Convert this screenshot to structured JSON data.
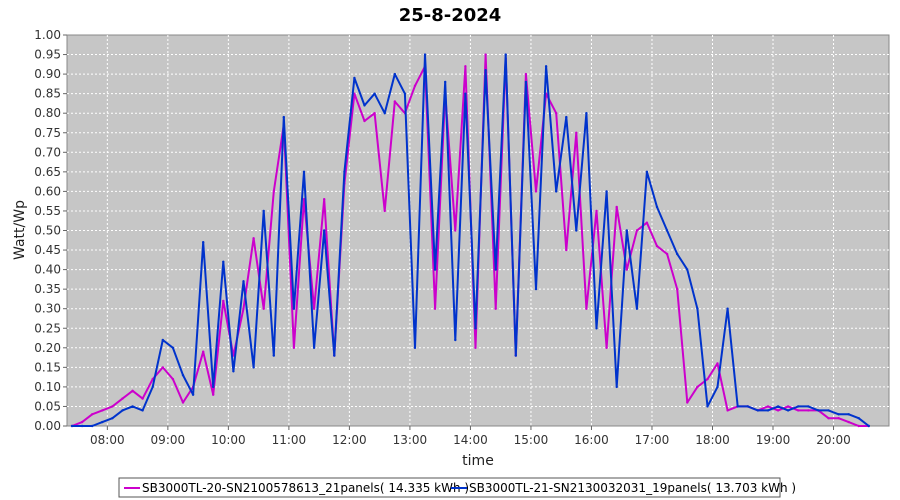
{
  "chart_data": {
    "type": "line",
    "title": "25-8-2024",
    "xlabel": "time",
    "ylabel": "Watt/Wp",
    "ylim": [
      0,
      1.0
    ],
    "xlim": [
      "07:20",
      "20:55"
    ],
    "y_ticks": [
      "0.00",
      "0.05",
      "0.10",
      "0.15",
      "0.20",
      "0.25",
      "0.30",
      "0.35",
      "0.40",
      "0.45",
      "0.50",
      "0.55",
      "0.60",
      "0.65",
      "0.70",
      "0.75",
      "0.80",
      "0.85",
      "0.90",
      "0.95",
      "1.00"
    ],
    "x_ticks": [
      "08:00",
      "09:00",
      "10:00",
      "11:00",
      "12:00",
      "13:00",
      "14:00",
      "15:00",
      "16:00",
      "17:00",
      "18:00",
      "19:00",
      "20:00"
    ],
    "grid": true,
    "legend_position": "bottom",
    "series": [
      {
        "name": "SB3000TL-20-SN2100578613_21panels( 14.335 kWh )",
        "color": "#cc00cc",
        "x": [
          "07:25",
          "07:35",
          "07:45",
          "07:55",
          "08:05",
          "08:15",
          "08:25",
          "08:35",
          "08:45",
          "08:55",
          "09:05",
          "09:15",
          "09:25",
          "09:35",
          "09:45",
          "09:55",
          "10:05",
          "10:15",
          "10:25",
          "10:35",
          "10:45",
          "10:55",
          "11:05",
          "11:15",
          "11:25",
          "11:35",
          "11:45",
          "11:55",
          "12:05",
          "12:15",
          "12:25",
          "12:35",
          "12:45",
          "12:55",
          "13:05",
          "13:15",
          "13:25",
          "13:35",
          "13:45",
          "13:55",
          "14:05",
          "14:15",
          "14:25",
          "14:35",
          "14:45",
          "14:55",
          "15:05",
          "15:15",
          "15:25",
          "15:35",
          "15:45",
          "15:55",
          "16:05",
          "16:15",
          "16:25",
          "16:35",
          "16:45",
          "16:55",
          "17:05",
          "17:15",
          "17:25",
          "17:35",
          "17:45",
          "17:55",
          "18:05",
          "18:15",
          "18:25",
          "18:35",
          "18:45",
          "18:55",
          "19:05",
          "19:15",
          "19:25",
          "19:35",
          "19:45",
          "19:55",
          "20:05",
          "20:15",
          "20:25",
          "20:35"
        ],
        "y": [
          0.0,
          0.01,
          0.03,
          0.04,
          0.05,
          0.07,
          0.09,
          0.07,
          0.12,
          0.15,
          0.12,
          0.06,
          0.1,
          0.19,
          0.08,
          0.32,
          0.18,
          0.3,
          0.48,
          0.3,
          0.6,
          0.77,
          0.2,
          0.58,
          0.3,
          0.58,
          0.18,
          0.62,
          0.85,
          0.78,
          0.8,
          0.55,
          0.83,
          0.8,
          0.87,
          0.92,
          0.3,
          0.85,
          0.5,
          0.92,
          0.2,
          0.95,
          0.3,
          0.94,
          0.18,
          0.9,
          0.6,
          0.85,
          0.8,
          0.45,
          0.75,
          0.3,
          0.55,
          0.2,
          0.56,
          0.4,
          0.5,
          0.52,
          0.46,
          0.44,
          0.35,
          0.06,
          0.1,
          0.12,
          0.16,
          0.04,
          0.05,
          0.05,
          0.04,
          0.05,
          0.04,
          0.05,
          0.04,
          0.04,
          0.04,
          0.02,
          0.02,
          0.01,
          0.0,
          0.0
        ]
      },
      {
        "name": "SB3000TL-21-SN2130032031_19panels( 13.703 kWh )",
        "color": "#0033cc",
        "x": [
          "07:25",
          "07:35",
          "07:45",
          "07:55",
          "08:05",
          "08:15",
          "08:25",
          "08:35",
          "08:45",
          "08:55",
          "09:05",
          "09:15",
          "09:25",
          "09:35",
          "09:45",
          "09:55",
          "10:05",
          "10:15",
          "10:25",
          "10:35",
          "10:45",
          "10:55",
          "11:05",
          "11:15",
          "11:25",
          "11:35",
          "11:45",
          "11:55",
          "12:05",
          "12:15",
          "12:25",
          "12:35",
          "12:45",
          "12:55",
          "13:05",
          "13:15",
          "13:25",
          "13:35",
          "13:45",
          "13:55",
          "14:05",
          "14:15",
          "14:25",
          "14:35",
          "14:45",
          "14:55",
          "15:05",
          "15:15",
          "15:25",
          "15:35",
          "15:45",
          "15:55",
          "16:05",
          "16:15",
          "16:25",
          "16:35",
          "16:45",
          "16:55",
          "17:05",
          "17:15",
          "17:25",
          "17:35",
          "17:45",
          "17:55",
          "18:05",
          "18:15",
          "18:25",
          "18:35",
          "18:45",
          "18:55",
          "19:05",
          "19:15",
          "19:25",
          "19:35",
          "19:45",
          "19:55",
          "20:05",
          "20:15",
          "20:25",
          "20:35"
        ],
        "y": [
          0.0,
          0.0,
          0.0,
          0.01,
          0.02,
          0.04,
          0.05,
          0.04,
          0.1,
          0.22,
          0.2,
          0.13,
          0.08,
          0.47,
          0.1,
          0.42,
          0.14,
          0.37,
          0.15,
          0.55,
          0.18,
          0.79,
          0.3,
          0.65,
          0.2,
          0.5,
          0.18,
          0.65,
          0.89,
          0.82,
          0.85,
          0.8,
          0.9,
          0.85,
          0.2,
          0.95,
          0.4,
          0.88,
          0.22,
          0.85,
          0.25,
          0.91,
          0.4,
          0.95,
          0.18,
          0.88,
          0.35,
          0.92,
          0.6,
          0.79,
          0.5,
          0.8,
          0.25,
          0.6,
          0.1,
          0.5,
          0.3,
          0.65,
          0.56,
          0.5,
          0.44,
          0.4,
          0.3,
          0.05,
          0.1,
          0.3,
          0.05,
          0.05,
          0.04,
          0.04,
          0.05,
          0.04,
          0.05,
          0.05,
          0.04,
          0.04,
          0.03,
          0.03,
          0.02,
          0.0
        ]
      }
    ]
  }
}
